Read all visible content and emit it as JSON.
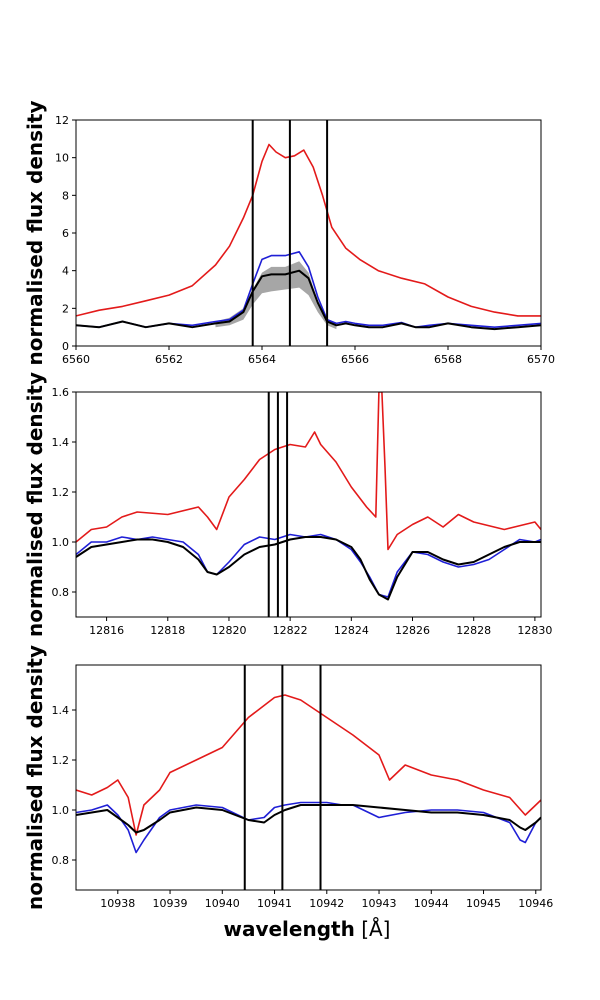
{
  "figure": {
    "xlabel_bold": "wavelength",
    "xlabel_unit": " [Å]"
  },
  "colors": {
    "red": "#e31a1a",
    "blue": "#1f1fd6",
    "black": "#000000",
    "gray": "#888888"
  },
  "chart_data": [
    {
      "type": "line",
      "title": "",
      "xlabel": "",
      "ylabel": "normalised flux density",
      "xlim": [
        6560,
        6570
      ],
      "ylim": [
        0,
        12
      ],
      "xticks": [
        6560,
        6562,
        6564,
        6566,
        6568,
        6570
      ],
      "yticks": [
        0,
        2,
        4,
        6,
        8,
        10,
        12
      ],
      "xtick_labels": [
        "6560",
        "6562",
        "6564",
        "6566",
        "6568",
        "6570"
      ],
      "ytick_labels": [
        "0",
        "2",
        "4",
        "6",
        "8",
        "10",
        "12"
      ],
      "vlines": [
        6563.8,
        6564.6,
        6565.4
      ],
      "series": [
        {
          "name": "red",
          "color": "red",
          "x": [
            6560,
            6560.5,
            6561,
            6561.5,
            6562,
            6562.5,
            6563,
            6563.3,
            6563.6,
            6563.8,
            6564,
            6564.15,
            6564.3,
            6564.5,
            6564.7,
            6564.9,
            6565.1,
            6565.3,
            6565.5,
            6565.8,
            6566.1,
            6566.5,
            6567,
            6567.5,
            6568,
            6568.5,
            6569,
            6569.5,
            6570
          ],
          "y": [
            1.6,
            1.9,
            2.1,
            2.4,
            2.7,
            3.2,
            4.3,
            5.3,
            6.8,
            8.0,
            9.8,
            10.7,
            10.3,
            10.0,
            10.1,
            10.4,
            9.5,
            8.0,
            6.3,
            5.2,
            4.6,
            4.0,
            3.6,
            3.3,
            2.6,
            2.1,
            1.8,
            1.6,
            1.6
          ]
        },
        {
          "name": "blue",
          "color": "blue",
          "x": [
            6560,
            6560.5,
            6561,
            6561.5,
            6562,
            6562.5,
            6563,
            6563.3,
            6563.6,
            6563.8,
            6564,
            6564.2,
            6564.5,
            6564.8,
            6565,
            6565.2,
            6565.4,
            6565.6,
            6565.8,
            6566,
            6566.3,
            6566.6,
            6567,
            6567.3,
            6567.6,
            6568,
            6568.5,
            6569,
            6569.5,
            6570
          ],
          "y": [
            1.1,
            1.0,
            1.3,
            1.0,
            1.2,
            1.1,
            1.3,
            1.4,
            1.9,
            3.3,
            4.6,
            4.8,
            4.8,
            5.0,
            4.2,
            2.6,
            1.4,
            1.2,
            1.3,
            1.2,
            1.1,
            1.1,
            1.25,
            1.0,
            1.1,
            1.2,
            1.1,
            1.0,
            1.1,
            1.2
          ]
        },
        {
          "name": "black",
          "color": "black",
          "x": [
            6560,
            6560.5,
            6561,
            6561.5,
            6562,
            6562.5,
            6563,
            6563.3,
            6563.6,
            6563.8,
            6564,
            6564.2,
            6564.5,
            6564.8,
            6565,
            6565.2,
            6565.4,
            6565.6,
            6565.8,
            6566,
            6566.3,
            6566.6,
            6567,
            6567.3,
            6567.6,
            6568,
            6568.5,
            6569,
            6569.5,
            6570
          ],
          "y": [
            1.1,
            1.0,
            1.3,
            1.0,
            1.2,
            1.0,
            1.2,
            1.3,
            1.8,
            2.9,
            3.7,
            3.8,
            3.8,
            4.0,
            3.6,
            2.3,
            1.3,
            1.1,
            1.2,
            1.1,
            1.0,
            1.0,
            1.2,
            1.0,
            1.0,
            1.2,
            1.0,
            0.9,
            1.0,
            1.1
          ]
        },
        {
          "name": "gray-upper",
          "color": "gray",
          "x": [
            6563,
            6563.3,
            6563.6,
            6563.8,
            6564,
            6564.2,
            6564.5,
            6564.8,
            6565,
            6565.2,
            6565.4,
            6565.6
          ],
          "y": [
            1.3,
            1.5,
            2.0,
            3.0,
            3.9,
            4.2,
            4.2,
            4.5,
            3.9,
            2.4,
            1.4,
            1.2
          ]
        },
        {
          "name": "gray-lower",
          "color": "gray",
          "x": [
            6563,
            6563.3,
            6563.6,
            6563.8,
            6564,
            6564.2,
            6564.5,
            6564.8,
            6565,
            6565.2,
            6565.4,
            6565.6
          ],
          "y": [
            1.0,
            1.1,
            1.4,
            2.2,
            2.8,
            2.9,
            3.0,
            3.1,
            2.7,
            1.8,
            1.1,
            0.9
          ]
        }
      ]
    },
    {
      "type": "line",
      "title": "",
      "xlabel": "",
      "ylabel": "normalised flux density",
      "xlim": [
        12815,
        12830.2
      ],
      "ylim": [
        0.7,
        1.6
      ],
      "xticks": [
        12816,
        12818,
        12820,
        12822,
        12824,
        12826,
        12828,
        12830
      ],
      "yticks": [
        0.8,
        1.0,
        1.2,
        1.4,
        1.6
      ],
      "xtick_labels": [
        "12816",
        "12818",
        "12820",
        "12822",
        "12824",
        "12826",
        "12828",
        "12830"
      ],
      "ytick_labels": [
        "0.8",
        "1.0",
        "1.2",
        "1.4",
        "1.6"
      ],
      "vlines": [
        12821.3,
        12821.6,
        12821.9
      ],
      "series": [
        {
          "name": "red",
          "color": "red",
          "x": [
            12815,
            12815.5,
            12816,
            12816.5,
            12817,
            12818,
            12819,
            12819.3,
            12819.6,
            12820,
            12820.5,
            12821,
            12821.5,
            12822,
            12822.5,
            12822.8,
            12823,
            12823.5,
            12824,
            12824.5,
            12824.8,
            12824.9,
            12825,
            12825.1,
            12825.2,
            12825.5,
            12826,
            12826.5,
            12827,
            12827.5,
            12828,
            12829,
            12830,
            12830.2
          ],
          "y": [
            1.0,
            1.05,
            1.06,
            1.1,
            1.12,
            1.11,
            1.14,
            1.1,
            1.05,
            1.18,
            1.25,
            1.33,
            1.37,
            1.39,
            1.38,
            1.44,
            1.39,
            1.32,
            1.22,
            1.14,
            1.1,
            1.6,
            1.6,
            1.3,
            0.97,
            1.03,
            1.07,
            1.1,
            1.06,
            1.11,
            1.08,
            1.05,
            1.08,
            1.05
          ]
        },
        {
          "name": "blue",
          "color": "blue",
          "x": [
            12815,
            12815.5,
            12816,
            12816.5,
            12817,
            12817.5,
            12818,
            12818.5,
            12819,
            12819.3,
            12819.6,
            12820,
            12820.5,
            12821,
            12821.5,
            12822,
            12822.5,
            12823,
            12823.5,
            12824,
            12824.3,
            12824.6,
            12824.9,
            12825.2,
            12825.5,
            12826,
            12826.5,
            12827,
            12827.5,
            12828,
            12828.5,
            12829,
            12829.5,
            12830,
            12830.2
          ],
          "y": [
            0.95,
            1.0,
            1.0,
            1.02,
            1.01,
            1.02,
            1.01,
            1.0,
            0.95,
            0.88,
            0.87,
            0.92,
            0.99,
            1.02,
            1.01,
            1.03,
            1.02,
            1.03,
            1.01,
            0.97,
            0.92,
            0.86,
            0.79,
            0.78,
            0.88,
            0.96,
            0.95,
            0.92,
            0.9,
            0.91,
            0.93,
            0.97,
            1.01,
            1.0,
            1.01
          ]
        },
        {
          "name": "black",
          "color": "black",
          "x": [
            12815,
            12815.5,
            12816,
            12816.5,
            12817,
            12817.5,
            12818,
            12818.5,
            12819,
            12819.3,
            12819.6,
            12820,
            12820.5,
            12821,
            12821.5,
            12822,
            12822.5,
            12823,
            12823.5,
            12824,
            12824.3,
            12824.6,
            12824.9,
            12825.2,
            12825.5,
            12826,
            12826.5,
            12827,
            12827.5,
            12828,
            12828.5,
            12829,
            12829.5,
            12830,
            12830.2
          ],
          "y": [
            0.94,
            0.98,
            0.99,
            1.0,
            1.01,
            1.01,
            1.0,
            0.98,
            0.93,
            0.88,
            0.87,
            0.9,
            0.95,
            0.98,
            0.99,
            1.01,
            1.02,
            1.02,
            1.01,
            0.98,
            0.93,
            0.85,
            0.79,
            0.77,
            0.86,
            0.96,
            0.96,
            0.93,
            0.91,
            0.92,
            0.95,
            0.98,
            1.0,
            1.0,
            1.0
          ]
        }
      ]
    },
    {
      "type": "line",
      "title": "",
      "xlabel": "wavelength [Å]",
      "ylabel": "normalised flux density",
      "xlim": [
        10937.2,
        10946.1
      ],
      "ylim": [
        0.68,
        1.58
      ],
      "xticks": [
        10938,
        10939,
        10940,
        10941,
        10942,
        10943,
        10944,
        10945,
        10946
      ],
      "yticks": [
        0.8,
        1.0,
        1.2,
        1.4
      ],
      "xtick_labels": [
        "10938",
        "10939",
        "10940",
        "10941",
        "10942",
        "10943",
        "10944",
        "10945",
        "10946"
      ],
      "ytick_labels": [
        "0.8",
        "1.0",
        "1.2",
        "1.4"
      ],
      "vlines": [
        10940.43,
        10941.15,
        10941.88
      ],
      "series": [
        {
          "name": "red",
          "color": "red",
          "x": [
            10937.2,
            10937.5,
            10937.8,
            10938,
            10938.2,
            10938.35,
            10938.5,
            10938.8,
            10939,
            10939.5,
            10940,
            10940.5,
            10941,
            10941.2,
            10941.5,
            10942,
            10942.5,
            10943,
            10943.2,
            10943.5,
            10944,
            10944.5,
            10945,
            10945.5,
            10945.8,
            10946,
            10946.1
          ],
          "y": [
            1.08,
            1.06,
            1.09,
            1.12,
            1.05,
            0.9,
            1.02,
            1.08,
            1.15,
            1.2,
            1.25,
            1.37,
            1.45,
            1.46,
            1.44,
            1.37,
            1.3,
            1.22,
            1.12,
            1.18,
            1.14,
            1.12,
            1.08,
            1.05,
            0.98,
            1.02,
            1.04
          ]
        },
        {
          "name": "blue",
          "color": "blue",
          "x": [
            10937.2,
            10937.5,
            10937.8,
            10938,
            10938.2,
            10938.35,
            10938.5,
            10938.8,
            10939,
            10939.5,
            10940,
            10940.5,
            10940.8,
            10941,
            10941.2,
            10941.5,
            10942,
            10942.3,
            10942.5,
            10942.8,
            10943,
            10943.5,
            10944,
            10944.5,
            10945,
            10945.5,
            10945.7,
            10945.8,
            10946,
            10946.1
          ],
          "y": [
            0.99,
            1.0,
            1.02,
            0.98,
            0.92,
            0.83,
            0.88,
            0.97,
            1.0,
            1.02,
            1.01,
            0.96,
            0.97,
            1.01,
            1.02,
            1.03,
            1.03,
            1.02,
            1.02,
            0.99,
            0.97,
            0.99,
            1.0,
            1.0,
            0.99,
            0.95,
            0.88,
            0.87,
            0.95,
            0.97
          ]
        },
        {
          "name": "black",
          "color": "black",
          "x": [
            10937.2,
            10937.5,
            10937.8,
            10938,
            10938.2,
            10938.35,
            10938.5,
            10938.8,
            10939,
            10939.5,
            10940,
            10940.5,
            10940.8,
            10941,
            10941.2,
            10941.5,
            10942,
            10942.5,
            10943,
            10943.5,
            10944,
            10944.5,
            10945,
            10945.5,
            10945.7,
            10945.8,
            10946,
            10946.1
          ],
          "y": [
            0.98,
            0.99,
            1.0,
            0.97,
            0.94,
            0.91,
            0.92,
            0.96,
            0.99,
            1.01,
            1.0,
            0.96,
            0.95,
            0.98,
            1.0,
            1.02,
            1.02,
            1.02,
            1.01,
            1.0,
            0.99,
            0.99,
            0.98,
            0.96,
            0.93,
            0.92,
            0.95,
            0.97
          ]
        }
      ]
    }
  ]
}
